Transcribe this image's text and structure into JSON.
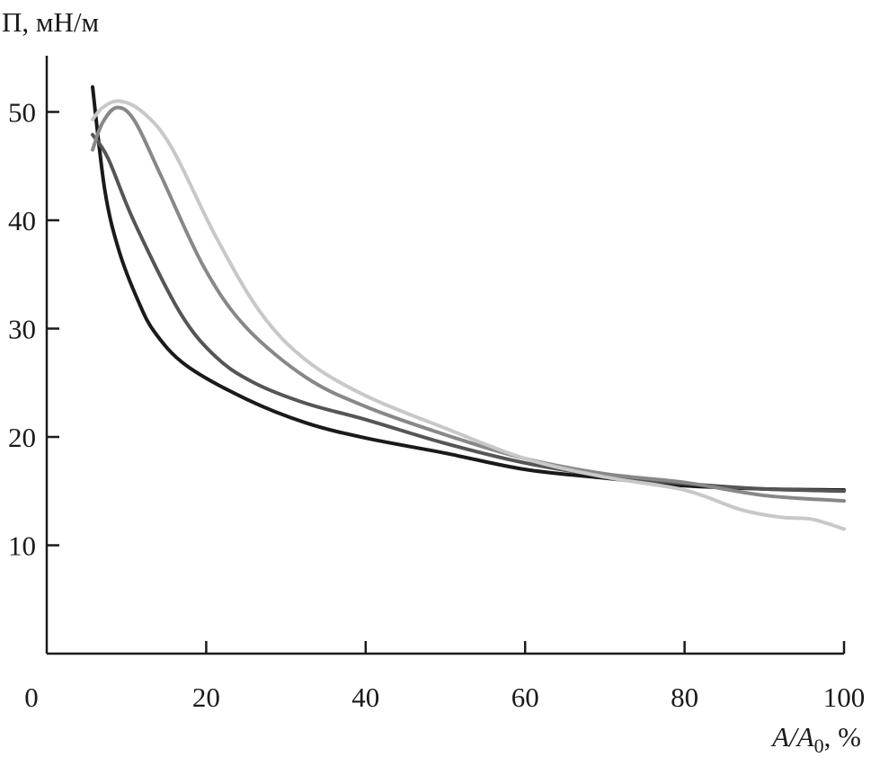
{
  "chart_data": {
    "type": "line",
    "title": "",
    "ylabel": "П, мН/м",
    "xlabel": "A/A₀, %",
    "xlim": [
      0,
      100
    ],
    "ylim": [
      0,
      56
    ],
    "x_ticks": [
      0,
      20,
      40,
      60,
      80,
      100
    ],
    "y_ticks": [
      10,
      20,
      30,
      40,
      50
    ],
    "grid": false,
    "legend": "none",
    "series": [
      {
        "color": "#1a1a1a",
        "points": [
          [
            5.75,
            52.3
          ],
          [
            7.3,
            42.7
          ],
          [
            9.1,
            37.1
          ],
          [
            11.5,
            32.5
          ],
          [
            13.6,
            29.6
          ],
          [
            17.5,
            26.6
          ],
          [
            25,
            23.5
          ],
          [
            32.5,
            21.3
          ],
          [
            40,
            19.9
          ],
          [
            50,
            18.5
          ],
          [
            60,
            17.0
          ],
          [
            70,
            16.2
          ],
          [
            80,
            15.5
          ],
          [
            90,
            15.2
          ],
          [
            100,
            15.1
          ]
        ]
      },
      {
        "color": "#555555",
        "points": [
          [
            5.75,
            47.9
          ],
          [
            7.7,
            45.7
          ],
          [
            11,
            39.8
          ],
          [
            16.7,
            31.5
          ],
          [
            21.2,
            27.4
          ],
          [
            26,
            25.0
          ],
          [
            32.5,
            23.1
          ],
          [
            40,
            21.6
          ],
          [
            50,
            19.4
          ],
          [
            60,
            17.6
          ],
          [
            70,
            16.4
          ],
          [
            80,
            15.7
          ],
          [
            90,
            15.2
          ],
          [
            100,
            15.0
          ]
        ]
      },
      {
        "color": "#888888",
        "points": [
          [
            5.75,
            46.5
          ],
          [
            7,
            49.0
          ],
          [
            8.8,
            50.4
          ],
          [
            11,
            49.2
          ],
          [
            14.4,
            44.0
          ],
          [
            19.7,
            35.7
          ],
          [
            24.9,
            30.2
          ],
          [
            32.5,
            25.5
          ],
          [
            40,
            22.8
          ],
          [
            50,
            20.2
          ],
          [
            60,
            18.0
          ],
          [
            70,
            16.6
          ],
          [
            80,
            15.8
          ],
          [
            90,
            14.6
          ],
          [
            100,
            14.1
          ]
        ]
      },
      {
        "color": "#c8c8c8",
        "points": [
          [
            5.75,
            49.3
          ],
          [
            7,
            50.4
          ],
          [
            9.1,
            51.0
          ],
          [
            12,
            50.0
          ],
          [
            15.6,
            46.8
          ],
          [
            21.2,
            38.5
          ],
          [
            26.8,
            31.5
          ],
          [
            32.5,
            27.1
          ],
          [
            40,
            23.8
          ],
          [
            50,
            20.8
          ],
          [
            60,
            18.0
          ],
          [
            70,
            16.3
          ],
          [
            80,
            15.1
          ],
          [
            87,
            13.3
          ],
          [
            92,
            12.6
          ],
          [
            96,
            12.4
          ],
          [
            100,
            11.5
          ]
        ]
      }
    ]
  }
}
